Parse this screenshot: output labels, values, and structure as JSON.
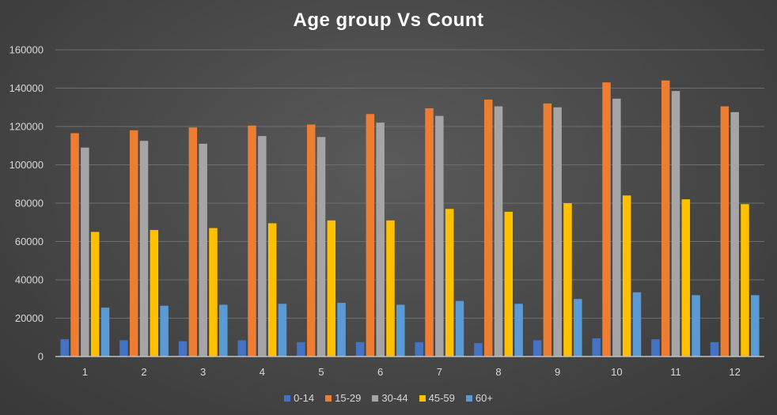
{
  "chart_data": {
    "type": "bar",
    "title": "Age group Vs Count",
    "xlabel": "",
    "ylabel": "",
    "ylim": [
      0,
      160000
    ],
    "yticks": [
      0,
      20000,
      40000,
      60000,
      80000,
      100000,
      120000,
      140000,
      160000
    ],
    "categories": [
      "1",
      "2",
      "3",
      "4",
      "5",
      "6",
      "7",
      "8",
      "9",
      "10",
      "11",
      "12"
    ],
    "grid": true,
    "legend_position": "bottom",
    "series": [
      {
        "name": "0-14",
        "color": "#4472c4",
        "values": [
          9000,
          8500,
          8000,
          8500,
          7500,
          7500,
          7500,
          7000,
          8500,
          9500,
          9000,
          7500
        ]
      },
      {
        "name": "15-29",
        "color": "#ed7d31",
        "values": [
          116500,
          118000,
          119500,
          120500,
          121000,
          126500,
          129500,
          134000,
          132000,
          143000,
          144000,
          130500
        ]
      },
      {
        "name": "30-44",
        "color": "#a5a5a5",
        "values": [
          109000,
          112500,
          111000,
          115000,
          114500,
          122000,
          125500,
          130500,
          130000,
          134500,
          138500,
          127500
        ]
      },
      {
        "name": "45-59",
        "color": "#ffc000",
        "values": [
          65000,
          66000,
          67000,
          69500,
          71000,
          71000,
          77000,
          75500,
          80000,
          84000,
          82000,
          79500
        ]
      },
      {
        "name": "60+",
        "color": "#5b9bd5",
        "values": [
          25500,
          26500,
          27000,
          27500,
          28000,
          27000,
          29000,
          27500,
          30000,
          33500,
          32000,
          32000
        ]
      }
    ]
  }
}
